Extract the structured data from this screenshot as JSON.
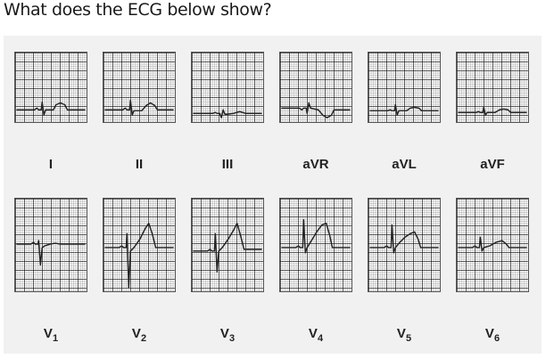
{
  "question": "What does the ECG below show?",
  "limb_leads": [
    {
      "label": "I",
      "shape": "lead_I"
    },
    {
      "label": "II",
      "shape": "lead_II"
    },
    {
      "label": "III",
      "shape": "lead_III"
    },
    {
      "label": "aVR",
      "shape": "lead_aVR"
    },
    {
      "label": "aVL",
      "shape": "lead_aVL"
    },
    {
      "label": "aVF",
      "shape": "lead_aVF"
    }
  ],
  "chest_leads": [
    {
      "label_main": "V",
      "label_sub": "1",
      "shape": "lead_V1"
    },
    {
      "label_main": "V",
      "label_sub": "2",
      "shape": "lead_V2"
    },
    {
      "label_main": "V",
      "label_sub": "3",
      "shape": "lead_V3"
    },
    {
      "label_main": "V",
      "label_sub": "4",
      "shape": "lead_V4"
    },
    {
      "label_main": "V",
      "label_sub": "5",
      "shape": "lead_V5"
    },
    {
      "label_main": "V",
      "label_sub": "6",
      "shape": "lead_V6"
    }
  ]
}
